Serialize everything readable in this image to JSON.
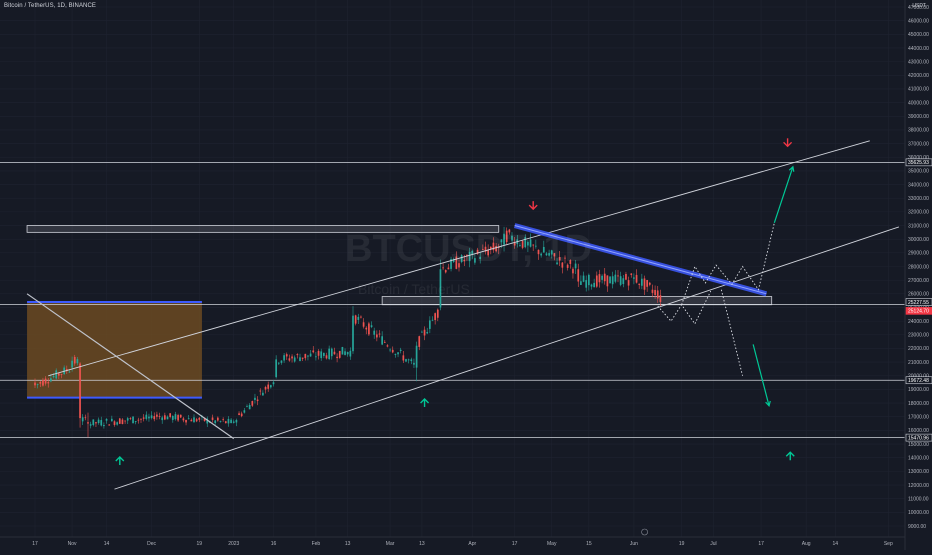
{
  "header": {
    "symbol_line": "Bitcoin / TetherUS, 1D, BINANCE",
    "unit": "USDT"
  },
  "watermark": {
    "ticker": "BTCUSDT, 1D",
    "description": "Bitcoin / TetherUS"
  },
  "colors": {
    "background": "#161a25",
    "grid": "#1f2330",
    "up": "#26a69a",
    "down": "#ef5350",
    "trendline": "#d1d4dc",
    "blue_line": "#3d5afe",
    "orange_zone": "#6b4a22",
    "arrow_green": "#00c896",
    "arrow_red": "#f23645"
  },
  "chart_data": {
    "type": "candlestick",
    "ylim": [
      8500,
      47500
    ],
    "x_ticks": [
      {
        "label": "17",
        "day": 0
      },
      {
        "label": "Nov",
        "day": 14
      },
      {
        "label": "14",
        "day": 27
      },
      {
        "label": "Dec",
        "day": 44
      },
      {
        "label": "19",
        "day": 62
      },
      {
        "label": "2023",
        "day": 75
      },
      {
        "label": "16",
        "day": 90
      },
      {
        "label": "Feb",
        "day": 106
      },
      {
        "label": "13",
        "day": 118
      },
      {
        "label": "Mar",
        "day": 134
      },
      {
        "label": "13",
        "day": 146
      },
      {
        "label": "Apr",
        "day": 165
      },
      {
        "label": "17",
        "day": 181
      },
      {
        "label": "May",
        "day": 195
      },
      {
        "label": "15",
        "day": 209
      },
      {
        "label": "Jun",
        "day": 226
      },
      {
        "label": "19",
        "day": 244
      },
      {
        "label": "Jul",
        "day": 256
      },
      {
        "label": "17",
        "day": 274
      },
      {
        "label": "Aug",
        "day": 291
      },
      {
        "label": "14",
        "day": 302
      },
      {
        "label": "Sep",
        "day": 322
      }
    ],
    "y_ticks": [
      9000,
      10000,
      11000,
      12000,
      13000,
      14000,
      15000,
      16000,
      17000,
      18000,
      19000,
      20000,
      21000,
      22000,
      23000,
      24000,
      25000,
      26000,
      27000,
      28000,
      29000,
      30000,
      31000,
      32000,
      33000,
      34000,
      35000,
      36000,
      37000,
      38000,
      39000,
      40000,
      41000,
      42000,
      43000,
      44000,
      45000,
      46000,
      47000
    ],
    "y_tick_labels": [
      "9000.00",
      "10000.00",
      "11000.00",
      "12000.00",
      "13000.00",
      "14000.00",
      "15000.00",
      "16000.00",
      "17000.00",
      "18000.00",
      "19000.00",
      "20000.00",
      "21000.00",
      "22000.00",
      "23000.00",
      "24000.00",
      "25000.00",
      "26000.00",
      "27000.00",
      "28000.00",
      "29000.00",
      "30000.00",
      "31000.00",
      "32000.00",
      "33000.00",
      "34000.00",
      "35000.00",
      "36000.00",
      "37000.00",
      "38000.00",
      "39000.00",
      "40000.00",
      "41000.00",
      "42000.00",
      "43000.00",
      "44000.00",
      "45000.00",
      "46000.00",
      "47000.00"
    ],
    "price_labels": [
      {
        "text": "35625.93",
        "price": 35625.93,
        "color": "#ffffff",
        "bg": "#161a25",
        "border": "#d1d4dc"
      },
      {
        "text": "25227.55",
        "price": 25400,
        "color": "#ffffff",
        "bg": "#161a25",
        "border": "#d1d4dc"
      },
      {
        "text": "25124.70",
        "price": 24750,
        "color": "#ffffff",
        "bg": "#f23645",
        "border": "#f23645"
      },
      {
        "text": "19672.48",
        "price": 19672.48,
        "color": "#ffffff",
        "bg": "#161a25",
        "border": "#d1d4dc"
      },
      {
        "text": "15470.96",
        "price": 15470.96,
        "color": "#ffffff",
        "bg": "#161a25",
        "border": "#d1d4dc"
      }
    ],
    "horizontal_lines": [
      35625.93,
      25227.55,
      19672.48,
      15470.96
    ],
    "key_points": [
      {
        "day": 0,
        "open": 19500,
        "high": 19800,
        "low": 19100,
        "close": 19300
      },
      {
        "day": 14,
        "open": 20600,
        "high": 21400,
        "low": 20300,
        "close": 21100
      },
      {
        "day": 17,
        "open": 20900,
        "high": 21000,
        "low": 16200,
        "close": 16900
      },
      {
        "day": 20,
        "open": 16600,
        "high": 17300,
        "low": 15500,
        "close": 16500
      },
      {
        "day": 44,
        "open": 16900,
        "high": 17400,
        "low": 16800,
        "close": 17100
      },
      {
        "day": 75,
        "open": 16550,
        "high": 16800,
        "low": 16500,
        "close": 16650
      },
      {
        "day": 91,
        "open": 19900,
        "high": 21500,
        "low": 19800,
        "close": 21200
      },
      {
        "day": 120,
        "open": 21800,
        "high": 25100,
        "low": 21600,
        "close": 24400
      },
      {
        "day": 144,
        "open": 20600,
        "high": 22500,
        "low": 19600,
        "close": 22200
      },
      {
        "day": 153,
        "open": 25000,
        "high": 28500,
        "low": 24800,
        "close": 27800
      },
      {
        "day": 177,
        "open": 29600,
        "high": 30900,
        "low": 29100,
        "close": 30400
      },
      {
        "day": 205,
        "open": 27800,
        "high": 28200,
        "low": 26500,
        "close": 26900
      },
      {
        "day": 226,
        "open": 27100,
        "high": 27500,
        "low": 26700,
        "close": 27200
      },
      {
        "day": 236,
        "open": 25900,
        "high": 26300,
        "low": 25100,
        "close": 25400
      }
    ]
  },
  "drawings": {
    "resistance_zone": {
      "day_from": -3,
      "day_to": 175,
      "price_low": 30500,
      "price_high": 31000
    },
    "support_zone": {
      "day_from": 131,
      "day_to": 278,
      "price_low": 25200,
      "price_high": 25800
    },
    "orange_zone": {
      "day_from": -3,
      "day_to": 63,
      "price_low": 18400,
      "price_high": 25400
    },
    "channel_upper": {
      "from": {
        "day": 5,
        "price": 20000
      },
      "to": {
        "day": 315,
        "price": 37200
      }
    },
    "channel_lower": {
      "from": {
        "day": 30,
        "price": 11700
      },
      "to": {
        "day": 326,
        "price": 30900
      }
    },
    "descending_diag": {
      "from": {
        "day": -3,
        "price": 26000
      },
      "to": {
        "day": 75,
        "price": 15400
      }
    },
    "blue_trend": {
      "from": {
        "day": 181,
        "price": 31000
      },
      "to": {
        "day": 276,
        "price": 26000
      }
    },
    "projection_down_path": [
      [
        235,
        25100
      ],
      [
        240,
        24000
      ],
      [
        244,
        25200
      ],
      [
        249,
        23800
      ],
      [
        255,
        26200
      ]
    ],
    "projection_up_path": [
      [
        244,
        25200
      ],
      [
        249,
        28000
      ],
      [
        253,
        26800
      ],
      [
        257,
        28100
      ],
      [
        263,
        26700
      ],
      [
        267,
        28000
      ],
      [
        273,
        26300
      ],
      [
        279,
        31200
      ]
    ],
    "projection_drop": [
      [
        259,
        26300
      ],
      [
        267,
        20000
      ]
    ],
    "arrows": [
      {
        "kind": "green-up",
        "day": 32,
        "price": 14050
      },
      {
        "kind": "green-up",
        "day": 147,
        "price": 18300
      },
      {
        "kind": "green-up",
        "day": 285,
        "price": 14400
      },
      {
        "kind": "green-up-line",
        "from": [
          279,
          31200
        ],
        "to": [
          286,
          35300
        ]
      },
      {
        "kind": "green-down-line",
        "from": [
          271,
          22300
        ],
        "to": [
          277,
          17800
        ]
      },
      {
        "kind": "red-down",
        "day": 188,
        "price": 32200
      },
      {
        "kind": "red-down",
        "day": 284,
        "price": 36800
      }
    ]
  }
}
